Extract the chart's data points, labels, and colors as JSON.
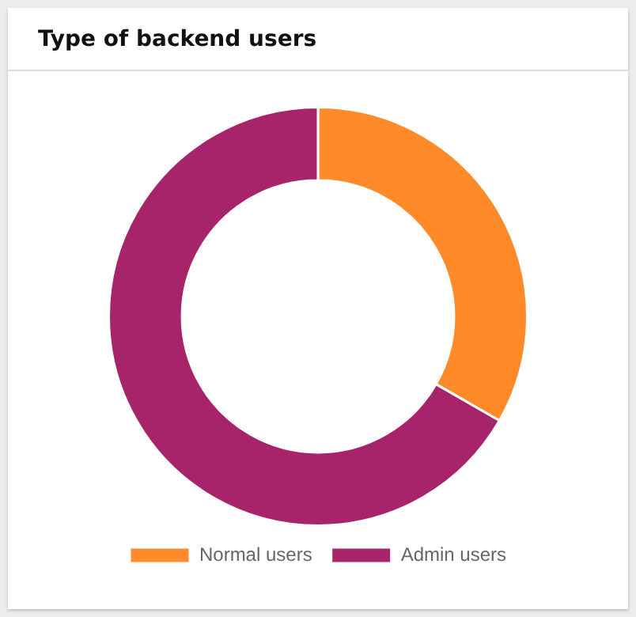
{
  "chart_data": {
    "type": "donut",
    "title": "Type of backend users",
    "categories": [
      "Normal users",
      "Admin users"
    ],
    "values": [
      33.3,
      66.7
    ],
    "colors": [
      "#fe8a2a",
      "#a8246a"
    ],
    "legend": "bottom"
  }
}
